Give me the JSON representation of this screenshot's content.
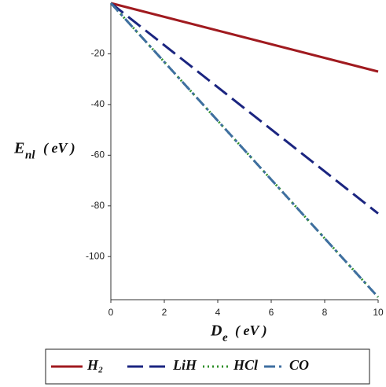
{
  "chart_data": {
    "type": "line",
    "x_label": {
      "main": "D",
      "sub": "e",
      "unit": "( eV )"
    },
    "y_label": {
      "main": "E",
      "sub": "nl",
      "unit": "( eV )"
    },
    "x": [
      0,
      10
    ],
    "series": [
      {
        "name": "H₂",
        "color": "#a01a1f",
        "dash": "",
        "values": [
          0,
          -27
        ]
      },
      {
        "name": "LiH",
        "color": "#1b2580",
        "dash": "20 8",
        "values": [
          0,
          -83
        ]
      },
      {
        "name": "HCl",
        "color": "#2f8f2a",
        "dash": "2 4",
        "values": [
          0,
          -116
        ]
      },
      {
        "name": "CO",
        "color": "#3f6fa0",
        "dash": "14 5 3 5",
        "values": [
          0,
          -116
        ]
      }
    ],
    "xlim": [
      0,
      10
    ],
    "ylim": [
      -117,
      0
    ],
    "xticks": [
      0,
      2,
      4,
      6,
      8,
      10
    ],
    "yticks": [
      -20,
      -40,
      -60,
      -80,
      -100
    ],
    "grid": false
  }
}
